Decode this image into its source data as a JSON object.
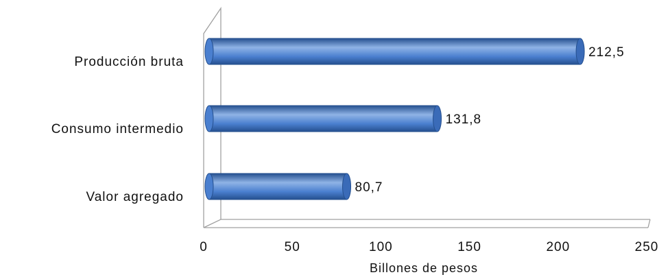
{
  "chart_data": {
    "type": "bar",
    "orientation": "horizontal",
    "categories": [
      "Producción bruta",
      "Consumo intermedio",
      "Valor agregado"
    ],
    "values": [
      212.5,
      131.8,
      80.7
    ],
    "value_labels": [
      "212,5",
      "131,8",
      "80,7"
    ],
    "xlabel": "Billones de pesos",
    "ylabel": "",
    "xlim": [
      0,
      250
    ],
    "xticks": [
      0,
      50,
      100,
      150,
      200,
      250
    ],
    "xtick_labels": [
      "0",
      "50",
      "100",
      "150",
      "200",
      "250"
    ],
    "grid": false,
    "legend": "none",
    "style": "3d-cylinder",
    "colors": {
      "bar_light": "#8fb3e6",
      "bar_main": "#4a7fcf",
      "bar_dark": "#25508f",
      "cap": "#3a6bb8",
      "axis": "#a0a0a0"
    }
  }
}
